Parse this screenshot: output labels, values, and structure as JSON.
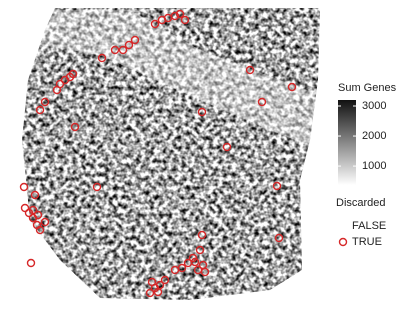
{
  "chart_data": {
    "type": "scatter",
    "xlim": [
      0,
      320
    ],
    "ylim": [
      310,
      0
    ],
    "x": [
      150,
      155,
      160,
      152,
      165,
      158,
      175,
      182,
      188,
      193,
      198,
      205,
      203,
      195,
      200,
      202,
      31,
      40,
      37,
      33,
      29,
      25,
      45,
      38,
      33,
      35,
      24,
      97,
      279,
      277,
      227,
      75,
      202,
      40,
      45,
      57,
      60,
      65,
      70,
      73,
      262,
      292,
      250,
      102,
      115,
      123,
      129,
      135,
      155,
      162,
      168,
      175,
      180,
      185
    ],
    "series": [
      {
        "name": "TRUE",
        "color": "#d62728",
        "values": [
          17,
          22,
          25,
          28,
          30,
          18,
          40,
          42,
          47,
          52,
          40,
          38,
          45,
          48,
          60,
          75,
          47,
          80,
          85,
          92,
          97,
          102,
          88,
          95,
          100,
          115,
          123,
          123,
          72,
          124,
          163,
          183,
          198,
          200,
          208,
          220,
          226,
          230,
          233,
          236,
          208,
          223,
          240,
          252,
          260,
          260,
          265,
          270,
          286,
          290,
          292,
          294,
          296,
          290
        ]
      }
    ],
    "legend": {
      "title": "Discarded",
      "entries": [
        "FALSE",
        "TRUE"
      ]
    },
    "colorbar": {
      "title": "Sum Genes",
      "lim": [
        370,
        3200
      ],
      "ticks": [
        1000,
        2000,
        3000
      ]
    }
  }
}
